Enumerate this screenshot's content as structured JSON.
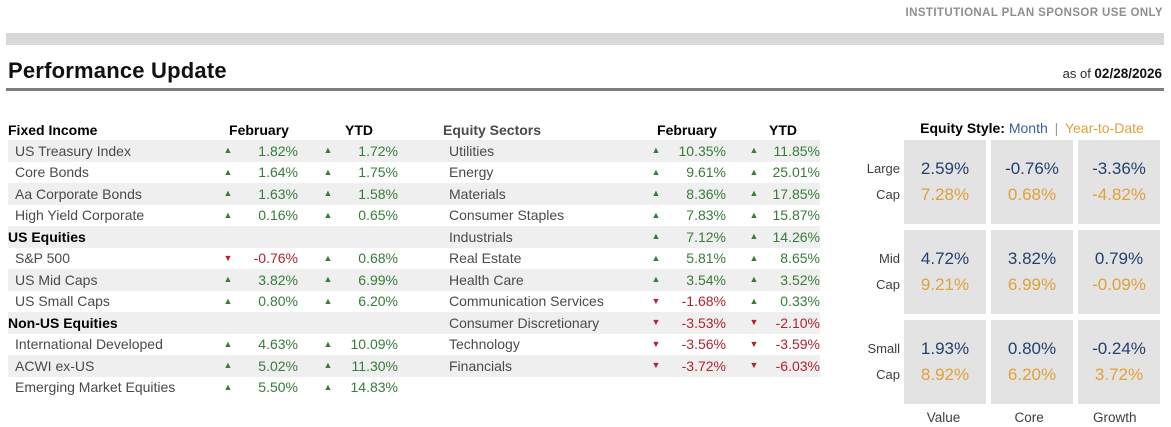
{
  "header": {
    "disclaimer": "INSTITUTIONAL PLAN SPONSOR USE ONLY",
    "title": "Performance Update",
    "as_of_prefix": "as of ",
    "as_of_date": "02/28/2026"
  },
  "tables": {
    "left": {
      "title": "Fixed Income",
      "col_month": "February",
      "col_ytd": "YTD"
    },
    "mid": {
      "title": "Equity Sectors",
      "col_month": "February",
      "col_ytd": "YTD"
    },
    "rows": [
      {
        "l": {
          "label": "US Treasury Index",
          "feb": {
            "v": "1.82%",
            "d": "up"
          },
          "ytd": {
            "v": "1.72%",
            "d": "up"
          }
        },
        "r": {
          "label": "Utilities",
          "feb": {
            "v": "10.35%",
            "d": "up"
          },
          "ytd": {
            "v": "11.85%",
            "d": "up"
          }
        }
      },
      {
        "l": {
          "label": "Core Bonds",
          "feb": {
            "v": "1.64%",
            "d": "up"
          },
          "ytd": {
            "v": "1.75%",
            "d": "up"
          }
        },
        "r": {
          "label": "Energy",
          "feb": {
            "v": "9.61%",
            "d": "up"
          },
          "ytd": {
            "v": "25.01%",
            "d": "up"
          }
        }
      },
      {
        "l": {
          "label": "Aa Corporate Bonds",
          "feb": {
            "v": "1.63%",
            "d": "up"
          },
          "ytd": {
            "v": "1.58%",
            "d": "up"
          }
        },
        "r": {
          "label": "Materials",
          "feb": {
            "v": "8.36%",
            "d": "up"
          },
          "ytd": {
            "v": "17.85%",
            "d": "up"
          }
        }
      },
      {
        "l": {
          "label": "High Yield Corporate",
          "feb": {
            "v": "0.16%",
            "d": "up"
          },
          "ytd": {
            "v": "0.65%",
            "d": "up"
          }
        },
        "r": {
          "label": "Consumer Staples",
          "feb": {
            "v": "7.83%",
            "d": "up"
          },
          "ytd": {
            "v": "15.87%",
            "d": "up"
          }
        }
      },
      {
        "l": {
          "label": "US Equities",
          "section": true
        },
        "r": {
          "label": "Industrials",
          "feb": {
            "v": "7.12%",
            "d": "up"
          },
          "ytd": {
            "v": "14.26%",
            "d": "up"
          }
        }
      },
      {
        "l": {
          "label": "S&P 500",
          "feb": {
            "v": "-0.76%",
            "d": "down"
          },
          "ytd": {
            "v": "0.68%",
            "d": "up"
          }
        },
        "r": {
          "label": "Real Estate",
          "feb": {
            "v": "5.81%",
            "d": "up"
          },
          "ytd": {
            "v": "8.65%",
            "d": "up"
          }
        }
      },
      {
        "l": {
          "label": "US Mid Caps",
          "feb": {
            "v": "3.82%",
            "d": "up"
          },
          "ytd": {
            "v": "6.99%",
            "d": "up"
          }
        },
        "r": {
          "label": "Health Care",
          "feb": {
            "v": "3.54%",
            "d": "up"
          },
          "ytd": {
            "v": "3.52%",
            "d": "up"
          }
        }
      },
      {
        "l": {
          "label": "US Small Caps",
          "feb": {
            "v": "0.80%",
            "d": "up"
          },
          "ytd": {
            "v": "6.20%",
            "d": "up"
          }
        },
        "r": {
          "label": "Communication Services",
          "feb": {
            "v": "-1.68%",
            "d": "down"
          },
          "ytd": {
            "v": "0.33%",
            "d": "up"
          }
        }
      },
      {
        "l": {
          "label": "Non-US Equities",
          "section": true
        },
        "r": {
          "label": "Consumer Discretionary",
          "feb": {
            "v": "-3.53%",
            "d": "down"
          },
          "ytd": {
            "v": "-2.10%",
            "d": "down"
          }
        }
      },
      {
        "l": {
          "label": "International Developed",
          "feb": {
            "v": "4.63%",
            "d": "up"
          },
          "ytd": {
            "v": "10.09%",
            "d": "up"
          }
        },
        "r": {
          "label": "Technology",
          "feb": {
            "v": "-3.56%",
            "d": "down"
          },
          "ytd": {
            "v": "-3.59%",
            "d": "down"
          }
        }
      },
      {
        "l": {
          "label": "ACWI ex-US",
          "feb": {
            "v": "5.02%",
            "d": "up"
          },
          "ytd": {
            "v": "11.30%",
            "d": "up"
          }
        },
        "r": {
          "label": "Financials",
          "feb": {
            "v": "-3.72%",
            "d": "down"
          },
          "ytd": {
            "v": "-6.03%",
            "d": "down"
          }
        }
      },
      {
        "l": {
          "label": "Emerging Market Equities",
          "feb": {
            "v": "5.50%",
            "d": "up"
          },
          "ytd": {
            "v": "14.83%",
            "d": "up"
          }
        }
      }
    ]
  },
  "equity_style": {
    "title": "Equity Style:",
    "month_label": "Month",
    "separator": "|",
    "ytd_label": "Year-to-Date",
    "row_labels": [
      {
        "line1": "Large",
        "line2": "Cap"
      },
      {
        "line1": "Mid",
        "line2": "Cap"
      },
      {
        "line1": "Small",
        "line2": "Cap"
      }
    ],
    "col_labels": [
      "Value",
      "Core",
      "Growth"
    ],
    "cells": [
      {
        "month": "2.59%",
        "ytd": "7.28%"
      },
      {
        "month": "-0.76%",
        "ytd": "0.68%"
      },
      {
        "month": "-3.36%",
        "ytd": "-4.82%"
      },
      {
        "month": "4.72%",
        "ytd": "9.21%"
      },
      {
        "month": "3.82%",
        "ytd": "6.99%"
      },
      {
        "month": "0.79%",
        "ytd": "-0.09%"
      },
      {
        "month": "1.93%",
        "ytd": "8.92%"
      },
      {
        "month": "0.80%",
        "ytd": "6.20%"
      },
      {
        "month": "-0.24%",
        "ytd": "3.72%"
      }
    ]
  },
  "icons": {
    "up_arrow": "▲",
    "down_arrow": "▼"
  },
  "colors": {
    "positive": "#377C37",
    "negative": "#B1222E",
    "month": "#24406F",
    "month_label": "#3B5CA9",
    "ytd": "#DFA13A",
    "stripe": "#EFEFEF",
    "box": "#E3E3E3",
    "bar": "#D8D8D8"
  }
}
